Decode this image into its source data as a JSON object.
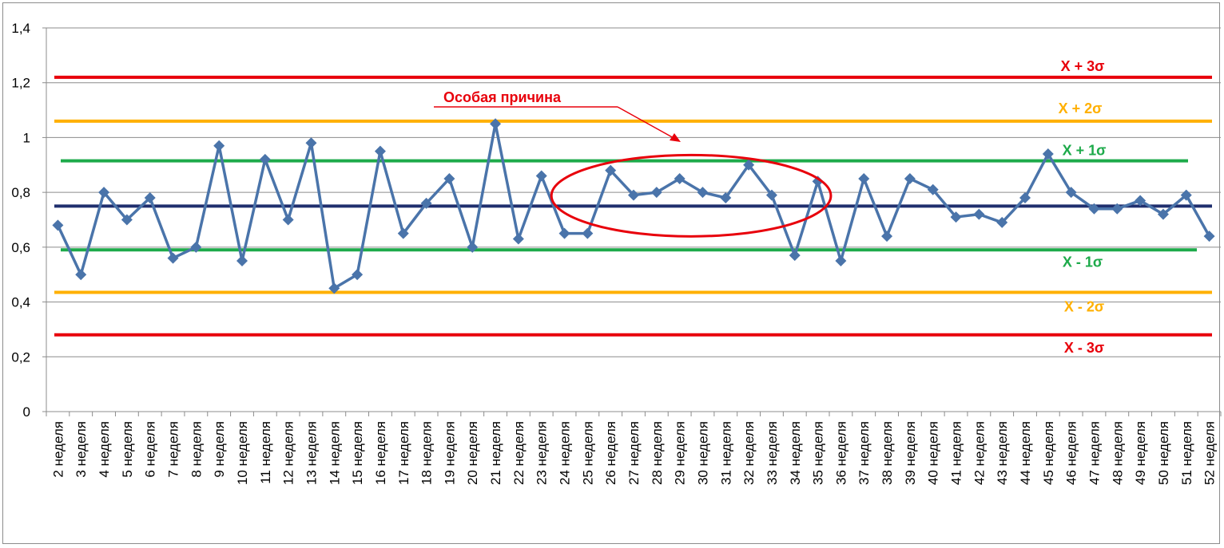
{
  "chart_data": {
    "type": "line",
    "title": "",
    "xlabel": "",
    "ylabel": "",
    "ylim": [
      0,
      1.4
    ],
    "yticks": [
      "0",
      "0,2",
      "0,4",
      "0,6",
      "0,8",
      "1",
      "1,2",
      "1,4"
    ],
    "grid": "horizontal",
    "legend": "none",
    "categories": [
      "2 неделя",
      "3 неделя",
      "4 неделя",
      "5 неделя",
      "6 неделя",
      "7 неделя",
      "8 неделя",
      "9 неделя",
      "10 неделя",
      "11 неделя",
      "12 неделя",
      "13 неделя",
      "14 неделя",
      "15 неделя",
      "16 неделя",
      "17 неделя",
      "18 неделя",
      "19 неделя",
      "20 неделя",
      "21 неделя",
      "22 неделя",
      "23 неделя",
      "24 неделя",
      "25 неделя",
      "26 неделя",
      "27 неделя",
      "28 неделя",
      "29 неделя",
      "30 неделя",
      "31 неделя",
      "32 неделя",
      "33 неделя",
      "34 неделя",
      "35 неделя",
      "36 неделя",
      "37 неделя",
      "38 неделя",
      "39 неделя",
      "40 неделя",
      "41 неделя",
      "42 неделя",
      "43 неделя",
      "44 неделя",
      "45 неделя",
      "46 неделя",
      "47 неделя",
      "48 неделя",
      "49 неделя",
      "50 неделя",
      "51 неделя",
      "52 неделя"
    ],
    "series": [
      {
        "color": "#4a74aa",
        "marker": "diamond",
        "values": [
          0.68,
          0.5,
          0.8,
          0.7,
          0.78,
          0.56,
          0.6,
          0.97,
          0.55,
          0.92,
          0.7,
          0.98,
          0.45,
          0.5,
          0.95,
          0.65,
          0.76,
          0.85,
          0.6,
          1.05,
          0.63,
          0.86,
          0.65,
          0.65,
          0.88,
          0.79,
          0.8,
          0.85,
          0.8,
          0.78,
          0.9,
          0.79,
          0.57,
          0.84,
          0.55,
          0.85,
          0.64,
          0.85,
          0.81,
          0.71,
          0.72,
          0.69,
          0.78,
          0.94,
          0.8,
          0.74,
          0.74,
          0.77,
          0.72,
          0.79,
          0.64
        ]
      }
    ],
    "control_lines": [
      {
        "label": "X + 3σ",
        "value": 1.22,
        "color": "#e8000b"
      },
      {
        "label": "X + 2σ",
        "value": 1.06,
        "color": "#ffb000"
      },
      {
        "label": "X + 1σ",
        "value": 0.915,
        "color": "#1daa4a"
      },
      {
        "label": "",
        "value": 0.75,
        "color": "#1f2f6e"
      },
      {
        "label": "X - 1σ",
        "value": 0.59,
        "color": "#1daa4a"
      },
      {
        "label": "X - 2σ",
        "value": 0.435,
        "color": "#ffb000"
      },
      {
        "label": "X - 3σ",
        "value": 0.28,
        "color": "#e8000b"
      }
    ],
    "annotations": [
      {
        "text": "Особая причина",
        "color": "#e8000b",
        "highlight_from": "26 неделя",
        "highlight_to": "33 неделя"
      }
    ],
    "colors": {
      "series": "#4a74aa",
      "grid": "#8c8c8c",
      "annotation": "#e8000b"
    }
  }
}
